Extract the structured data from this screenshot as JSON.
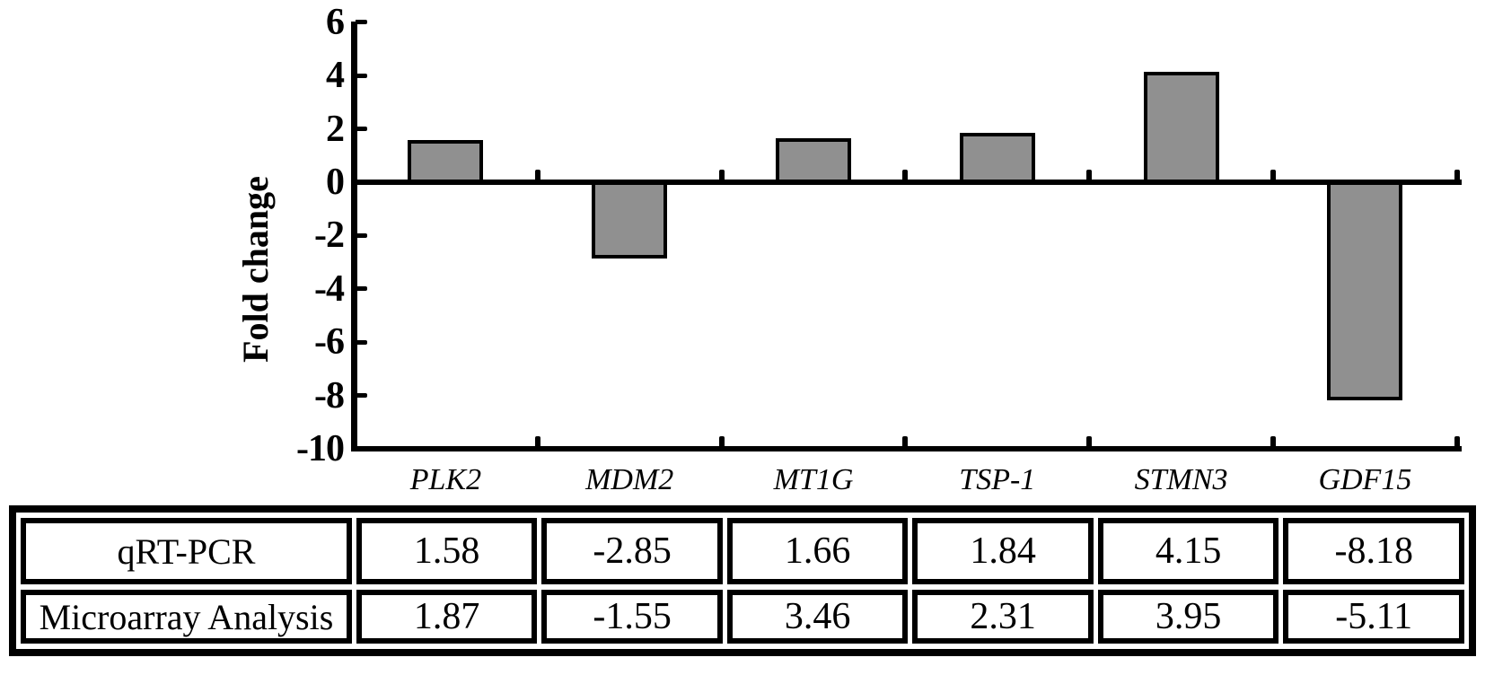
{
  "figure": {
    "background_color": "#ffffff",
    "axis_color": "#000000",
    "text_color": "#000000"
  },
  "chart_data": {
    "type": "bar",
    "title": "",
    "xlabel": "",
    "ylabel": "Fold change",
    "categories": [
      "PLK2",
      "MDM2",
      "MT1G",
      "TSP-1",
      "STMN3",
      "GDF15"
    ],
    "values": [
      1.58,
      -2.85,
      1.66,
      1.84,
      4.15,
      -8.18
    ],
    "series": [
      {
        "name": "qRT-PCR",
        "values": [
          1.58,
          -2.85,
          1.66,
          1.84,
          4.15,
          -8.18
        ]
      },
      {
        "name": "Microarray Analysis",
        "values": [
          1.87,
          -1.55,
          3.46,
          2.31,
          3.95,
          -5.11
        ]
      }
    ],
    "ylim": [
      -10,
      6
    ],
    "yticks": [
      6,
      4,
      2,
      0,
      -2,
      -4,
      -6,
      -8,
      -10
    ],
    "grid": false,
    "legend_position": "none",
    "bar_fill_color": "#909090",
    "bar_border_color": "#000000",
    "category_label_style": "italic"
  },
  "table": {
    "rows": [
      {
        "label": "qRT-PCR",
        "values": [
          "1.58",
          "-2.85",
          "1.66",
          "1.84",
          "4.15",
          "-8.18"
        ]
      },
      {
        "label": "Microarray Analysis",
        "values": [
          "1.87",
          "-1.55",
          "3.46",
          "2.31",
          "3.95",
          "-5.11"
        ]
      }
    ]
  }
}
